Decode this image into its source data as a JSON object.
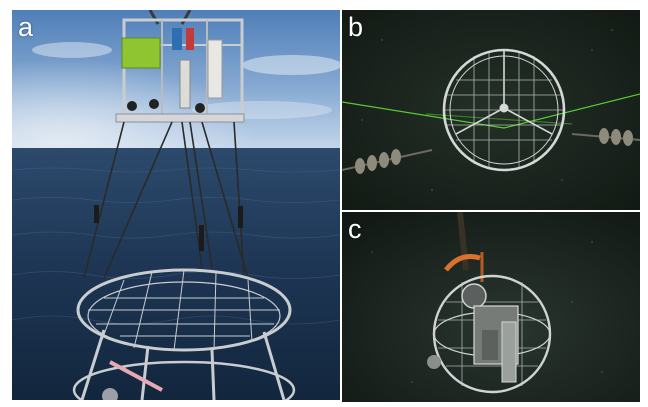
{
  "figure": {
    "panels": [
      {
        "id": "a",
        "label": "a"
      },
      {
        "id": "b",
        "label": "b"
      },
      {
        "id": "c",
        "label": "c"
      }
    ]
  },
  "colors": {
    "sky_top": "#4f7fb8",
    "sky_horizon": "#c4d6ea",
    "sea_far": "#2c4a6c",
    "sea_near": "#12263d",
    "frame_steel": "#c9ccd0",
    "bracket_green": "#8fc531",
    "float_orange": "#d9722d",
    "underwater_dark": "#141b16",
    "laser_green": "#5fdc3a",
    "label_white": "#ffffff"
  },
  "icons": [
    "instrument-frame-icon",
    "spherical-cage-icon",
    "laser-beam-icon",
    "cable-icon"
  ]
}
